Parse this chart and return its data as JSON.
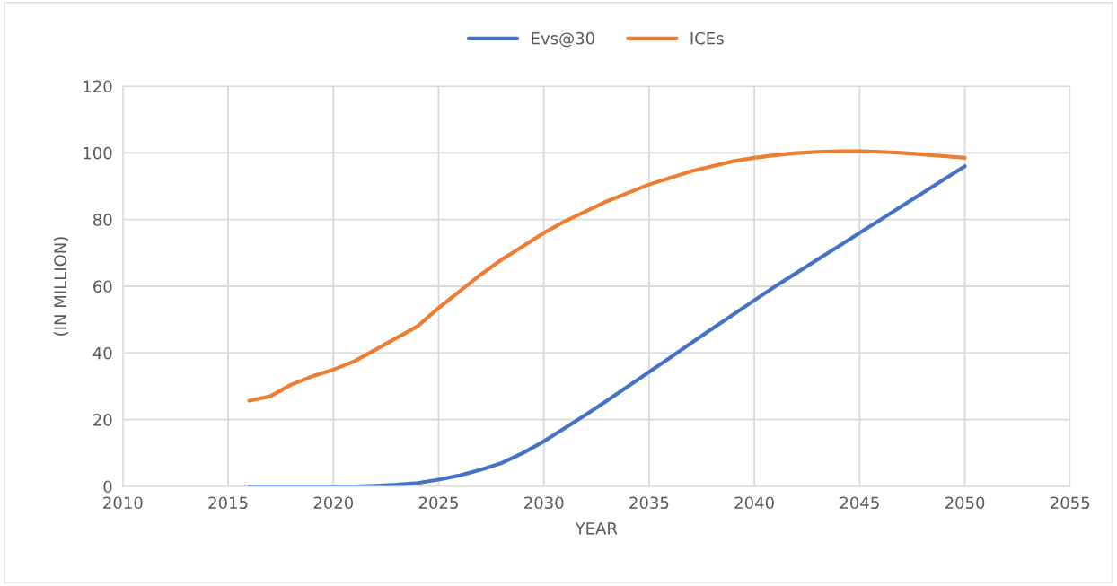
{
  "chart_data": {
    "type": "line",
    "xlabel": "YEAR",
    "ylabel": "(IN MILLION)",
    "x": [
      2016,
      2017,
      2018,
      2019,
      2020,
      2021,
      2022,
      2023,
      2024,
      2025,
      2026,
      2027,
      2028,
      2029,
      2030,
      2031,
      2032,
      2033,
      2034,
      2035,
      2036,
      2037,
      2038,
      2039,
      2040,
      2041,
      2042,
      2043,
      2044,
      2045,
      2046,
      2047,
      2048,
      2049,
      2050
    ],
    "series": [
      {
        "name": "Evs@30",
        "color": "#4472c4",
        "values": [
          0,
          0,
          0,
          0,
          0,
          0,
          0.2,
          0.5,
          1,
          2,
          3.3,
          5,
          7,
          10,
          13.5,
          17.5,
          21.5,
          25.7,
          30,
          34.3,
          38.6,
          43,
          47.3,
          51.5,
          55.8,
          60,
          64,
          68,
          72,
          76,
          80,
          84,
          88,
          92,
          96
        ]
      },
      {
        "name": "ICEs",
        "color": "#ed7d31",
        "values": [
          25.7,
          27,
          30.5,
          33,
          35,
          37.5,
          41,
          44.5,
          48,
          53.5,
          58.5,
          63.5,
          68,
          72,
          76,
          79.5,
          82.5,
          85.5,
          88,
          90.5,
          92.5,
          94.5,
          96,
          97.5,
          98.5,
          99.3,
          99.9,
          100.3,
          100.5,
          100.5,
          100.3,
          100,
          99.5,
          99,
          98.5
        ]
      }
    ],
    "xlim": [
      2010,
      2055
    ],
    "xticks": [
      2010,
      2015,
      2020,
      2025,
      2030,
      2035,
      2040,
      2045,
      2050,
      2055
    ],
    "ylim": [
      0,
      120
    ],
    "yticks": [
      0,
      20,
      40,
      60,
      80,
      100,
      120
    ],
    "grid": true,
    "legend": "top",
    "marker": "none",
    "line_style": "solid"
  }
}
